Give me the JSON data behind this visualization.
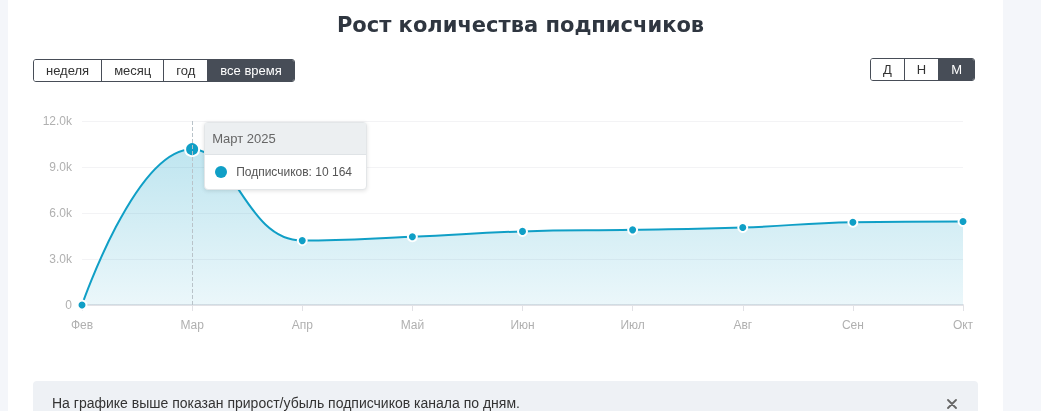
{
  "chart_data": {
    "type": "area",
    "title": "Рост количества подписчиков",
    "categories": [
      "Фев",
      "Мар",
      "Апр",
      "Май",
      "Июн",
      "Июл",
      "Авг",
      "Сен",
      "Окт"
    ],
    "series": [
      {
        "color": "#109fc6",
        "values": [
          0,
          10164,
          4200,
          4450,
          4800,
          4900,
          5050,
          5400,
          5450
        ]
      }
    ],
    "ylim": [
      0,
      12000
    ],
    "yticks": [
      0,
      {
        "value": 3000,
        "label": "3.0k"
      },
      {
        "value": 6000,
        "label": "6.0k"
      },
      {
        "value": 9000,
        "label": "9.0k"
      },
      {
        "value": 12000,
        "label": "12.0k"
      }
    ],
    "grid": "y",
    "marker": "circle",
    "line_style": "solid",
    "ref_lines": [
      {
        "axis": "x",
        "value": "Мар",
        "line_style": "dashed",
        "color": "#b9c3c9"
      }
    ],
    "annotations": [
      "неделя",
      "месяц",
      "год",
      "все время",
      "Д",
      "Н",
      "М",
      {
        "text": "Март 2025",
        "x": "Мар",
        "y": 10164
      },
      "Подписчиков: 10 164",
      "На графике выше показан прирост/убыль подписчиков канала по дням."
    ]
  }
}
